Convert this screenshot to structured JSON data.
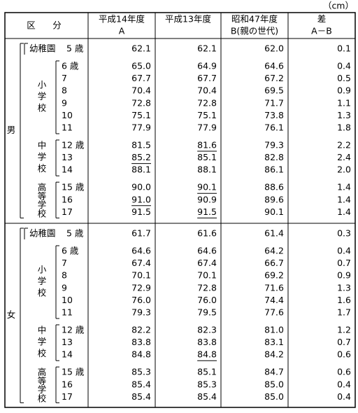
{
  "unit": "（cm）",
  "header": {
    "category": "区　分",
    "columns": [
      {
        "lines": [
          "平成14年度",
          "A"
        ]
      },
      {
        "lines": [
          "平成13年度"
        ]
      },
      {
        "lines": [
          "昭和47年度",
          "B(親の世代)"
        ]
      },
      {
        "lines": [
          "差",
          "A－B"
        ]
      }
    ]
  },
  "sections": [
    {
      "sex": "男",
      "groups": [
        {
          "label": "幼稚園",
          "rows": [
            {
              "age": "5 歳",
              "values": [
                "62.1",
                "62.1",
                "62.0",
                "0.1"
              ]
            }
          ]
        },
        {
          "label": "小学校",
          "rows": [
            {
              "age": "6 歳",
              "values": [
                "65.0",
                "64.9",
                "64.6",
                "0.4"
              ]
            },
            {
              "age": "7",
              "values": [
                "67.7",
                "67.7",
                "67.2",
                "0.5"
              ]
            },
            {
              "age": "8",
              "values": [
                "70.4",
                "70.4",
                "69.5",
                "0.9"
              ]
            },
            {
              "age": "9",
              "values": [
                "72.8",
                "72.8",
                "71.7",
                "1.1"
              ]
            },
            {
              "age": "10",
              "values": [
                "75.1",
                "75.1",
                "73.8",
                "1.3"
              ]
            },
            {
              "age": "11",
              "values": [
                "77.9",
                "77.9",
                "76.1",
                "1.8"
              ]
            }
          ]
        },
        {
          "label": "中学校",
          "rows": [
            {
              "age": "12 歳",
              "values": [
                "81.5",
                "81.6",
                "79.3",
                "2.2"
              ],
              "underlined": [
                1
              ]
            },
            {
              "age": "13",
              "values": [
                "85.2",
                "85.1",
                "82.8",
                "2.4"
              ],
              "underlined": [
                0
              ]
            },
            {
              "age": "14",
              "values": [
                "88.1",
                "88.1",
                "86.1",
                "2.0"
              ]
            }
          ]
        },
        {
          "label": "高等学校",
          "rows": [
            {
              "age": "15 歳",
              "values": [
                "90.0",
                "90.1",
                "88.6",
                "1.4"
              ],
              "underlined": [
                1
              ]
            },
            {
              "age": "16",
              "values": [
                "91.0",
                "90.9",
                "89.6",
                "1.4"
              ],
              "underlined": [
                0
              ]
            },
            {
              "age": "17",
              "values": [
                "91.5",
                "91.5",
                "90.1",
                "1.4"
              ],
              "underlined": [
                1
              ]
            }
          ]
        }
      ]
    },
    {
      "sex": "女",
      "groups": [
        {
          "label": "幼稚園",
          "rows": [
            {
              "age": "5 歳",
              "values": [
                "61.7",
                "61.6",
                "61.4",
                "0.3"
              ]
            }
          ]
        },
        {
          "label": "小学校",
          "rows": [
            {
              "age": "6 歳",
              "values": [
                "64.6",
                "64.6",
                "64.2",
                "0.4"
              ]
            },
            {
              "age": "7",
              "values": [
                "67.4",
                "67.4",
                "66.7",
                "0.7"
              ]
            },
            {
              "age": "8",
              "values": [
                "70.1",
                "70.1",
                "69.2",
                "0.9"
              ]
            },
            {
              "age": "9",
              "values": [
                "72.9",
                "72.8",
                "71.6",
                "1.3"
              ]
            },
            {
              "age": "10",
              "values": [
                "76.0",
                "76.0",
                "74.4",
                "1.6"
              ]
            },
            {
              "age": "11",
              "values": [
                "79.3",
                "79.5",
                "77.6",
                "1.7"
              ]
            }
          ]
        },
        {
          "label": "中学校",
          "rows": [
            {
              "age": "12 歳",
              "values": [
                "82.2",
                "82.3",
                "81.0",
                "1.2"
              ]
            },
            {
              "age": "13",
              "values": [
                "83.8",
                "83.8",
                "83.1",
                "0.7"
              ]
            },
            {
              "age": "14",
              "values": [
                "84.8",
                "84.8",
                "84.2",
                "0.6"
              ],
              "underlined": [
                1
              ]
            }
          ]
        },
        {
          "label": "高等学校",
          "rows": [
            {
              "age": "15 歳",
              "values": [
                "85.3",
                "85.1",
                "84.7",
                "0.6"
              ]
            },
            {
              "age": "16",
              "values": [
                "85.4",
                "85.3",
                "85.0",
                "0.4"
              ]
            },
            {
              "age": "17",
              "values": [
                "85.4",
                "85.4",
                "85.0",
                "0.4"
              ]
            }
          ]
        }
      ]
    }
  ]
}
